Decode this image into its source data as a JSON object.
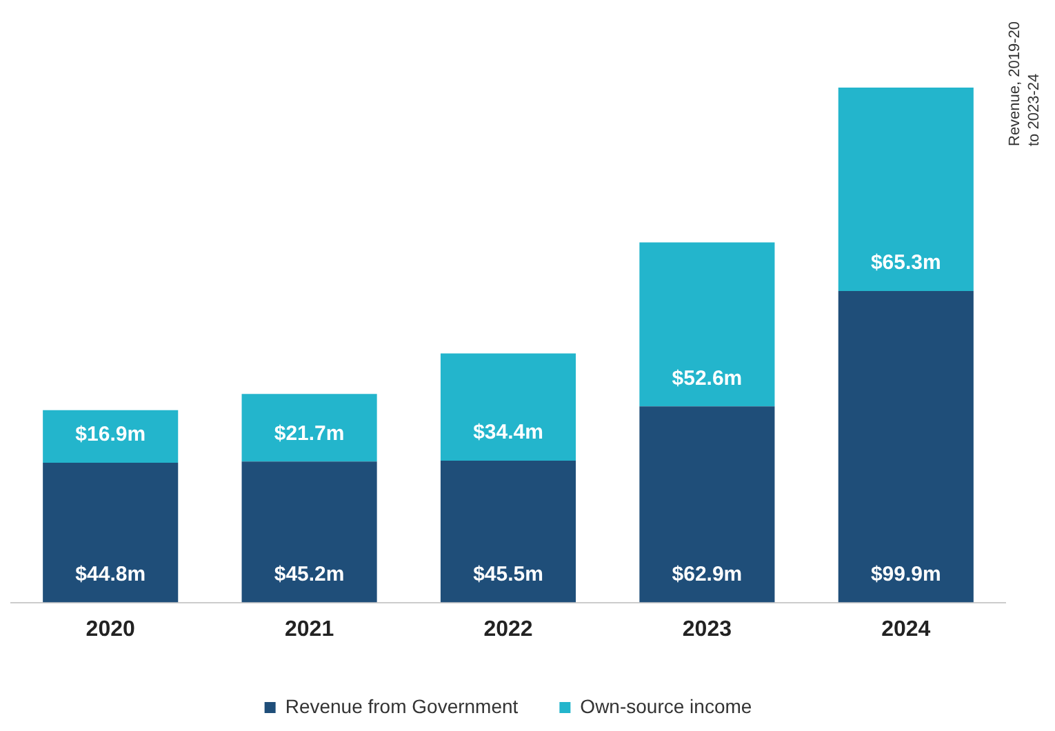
{
  "chart_data": {
    "type": "bar",
    "title": "Revenue, 2019-20 to 2023-24",
    "stacked": true,
    "legend": "bottom",
    "grid": false,
    "categories": [
      "2020",
      "2021",
      "2022",
      "2023",
      "2024"
    ],
    "series": [
      {
        "name": "Revenue from Government",
        "color": "#1f4e79",
        "values": [
          44.8,
          45.2,
          45.5,
          62.9,
          99.9
        ],
        "value_labels": [
          "$44.8m",
          "$45.2m",
          "$45.5m",
          "$62.9m",
          "$99.9m"
        ]
      },
      {
        "name": "Own-source income",
        "color": "#23b5cc",
        "values": [
          16.9,
          21.7,
          34.4,
          52.6,
          65.3
        ],
        "value_labels": [
          "$16.9m",
          "$21.7m",
          "$34.4m",
          "$52.6m",
          "$65.3m"
        ]
      }
    ]
  }
}
